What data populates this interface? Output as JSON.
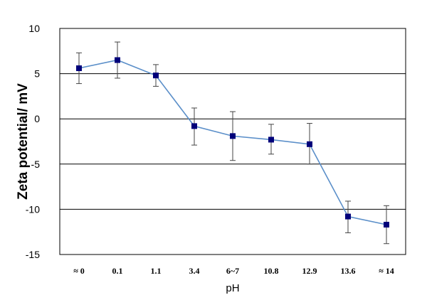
{
  "chart_data": {
    "type": "line",
    "title": "",
    "xlabel": "pH",
    "ylabel": "Zeta potential/ mV",
    "categories": [
      "≈ 0",
      "0.1",
      "1.1",
      "3.4",
      "6~7",
      "10.8",
      "12.9",
      "13.6",
      "≈ 14"
    ],
    "series": [
      {
        "values": [
          5.6,
          6.5,
          4.8,
          -0.8,
          -1.9,
          -2.3,
          -2.8,
          -10.8,
          -11.7
        ],
        "error_low": [
          3.9,
          4.5,
          3.6,
          -2.9,
          -4.6,
          -3.9,
          -5.0,
          -12.6,
          -13.8
        ],
        "error_high": [
          7.3,
          8.5,
          6.0,
          1.2,
          0.8,
          -0.6,
          -0.5,
          -9.1,
          -9.6
        ]
      }
    ],
    "ylim": [
      -15,
      10
    ],
    "yticks": [
      10,
      5,
      0,
      -5,
      -10,
      -15
    ],
    "grid": "horizontal",
    "legend": "none",
    "colors": {
      "line": "#5b8fc9",
      "marker": "#00007a",
      "errorbar": "#444444",
      "grid": "#000000"
    }
  }
}
